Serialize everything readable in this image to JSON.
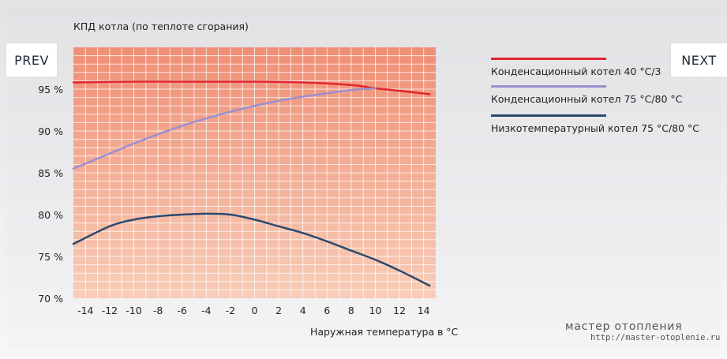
{
  "nav": {
    "prev_label": "PREV",
    "next_label": "NEXT"
  },
  "watermark": {
    "title": "мастер отопления",
    "url": "http://master-otoplenie.ru"
  },
  "legend": [
    {
      "label": "Конденсационный котел 40 °C/3",
      "color": "#e0262f"
    },
    {
      "label": "Конденсационный котел 75 °C/80 °C",
      "color": "#9a8fd0"
    },
    {
      "label": "Низкотемпературный котел 75 °C/80 °C",
      "color": "#2c4a6e"
    }
  ],
  "chart_data": {
    "type": "line",
    "ylabel": "КПД котла (по теплоте сгорания)",
    "xlabel": "Наружная температура в °C",
    "xlim": [
      -15,
      15
    ],
    "ylim": [
      70,
      100
    ],
    "x_ticks": [
      -14,
      -12,
      -10,
      -8,
      -6,
      -4,
      -2,
      0,
      2,
      4,
      6,
      8,
      10,
      12,
      14
    ],
    "x_tick_labels": [
      "-14",
      "-12",
      "-10",
      "-8",
      "-6",
      "-4",
      "-2",
      "0",
      "2",
      "4",
      "6",
      "8",
      "10",
      "12",
      "14"
    ],
    "y_ticks": [
      70,
      75,
      80,
      85,
      90,
      95
    ],
    "y_tick_labels": [
      "70 %",
      "75 %",
      "80 %",
      "85 %",
      "90 %",
      "95 %"
    ],
    "grid": true,
    "legend_position": "right",
    "colors": {
      "plot_top": "#ef8f75",
      "plot_bottom": "#f8cdb8"
    },
    "series": [
      {
        "name": "Конденсационный котел 40 °C/3",
        "color": "#e0262f",
        "x": [
          -15,
          -10,
          -5,
          0,
          4,
          8,
          10,
          12,
          14.5
        ],
        "y": [
          95.8,
          95.9,
          95.9,
          95.9,
          95.8,
          95.5,
          95.1,
          94.8,
          94.4
        ]
      },
      {
        "name": "Конденсационный котел 75 °C/80 °C",
        "color": "#9a8fd0",
        "x": [
          -15,
          -12,
          -10,
          -8,
          -6,
          -4,
          -2,
          0,
          2,
          4,
          6,
          8,
          10
        ],
        "y": [
          85.5,
          87.3,
          88.5,
          89.6,
          90.6,
          91.5,
          92.3,
          93.0,
          93.6,
          94.1,
          94.5,
          94.9,
          95.1
        ]
      },
      {
        "name": "Низкотемпературный котел 75 °C/80 °C",
        "color": "#2c4a6e",
        "x": [
          -15,
          -12,
          -10,
          -8,
          -6,
          -4,
          -2,
          0,
          2,
          4,
          6,
          8,
          10,
          12,
          14.5
        ],
        "y": [
          76.5,
          78.6,
          79.4,
          79.8,
          80.0,
          80.1,
          80.0,
          79.4,
          78.6,
          77.8,
          76.8,
          75.7,
          74.6,
          73.3,
          71.5
        ]
      }
    ]
  }
}
